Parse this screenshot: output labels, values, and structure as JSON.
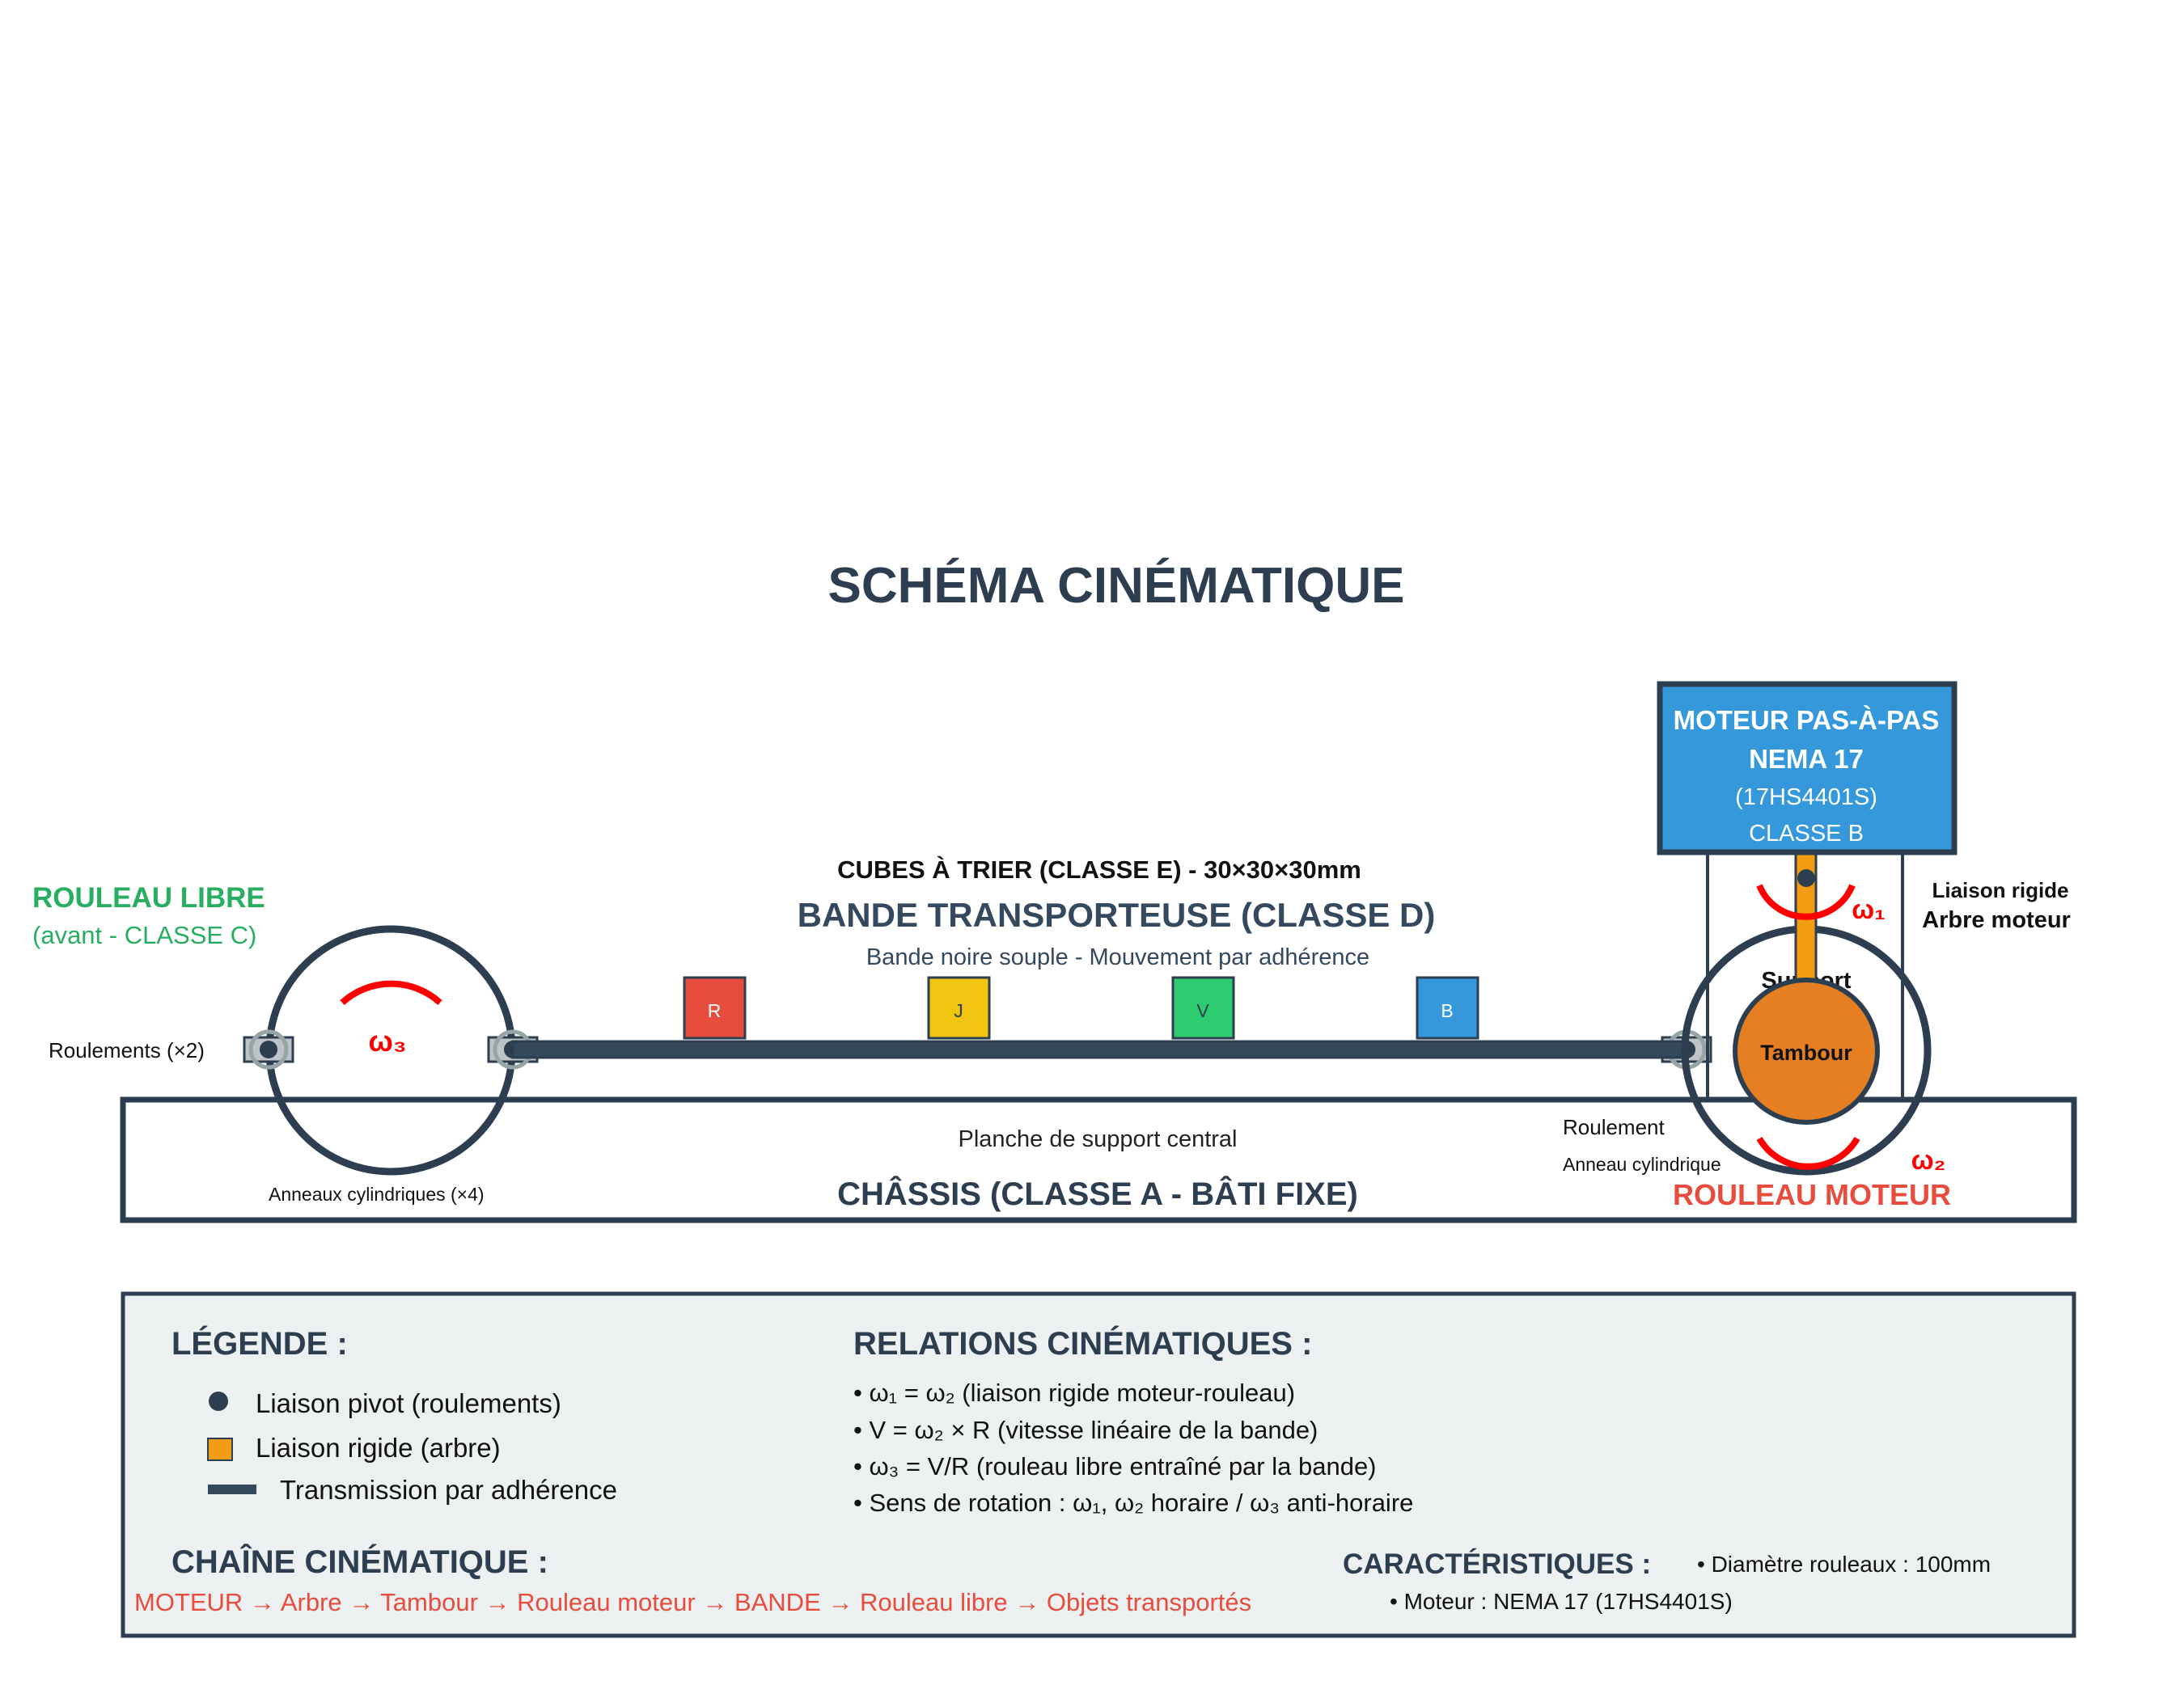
{
  "title": "SCHÉMA CINÉMATIQUE",
  "colors": {
    "dark": "#2c3e50",
    "belt": "#34495e",
    "green": "#27ae60",
    "red": "#e74c3c",
    "arrow_red": "#ff0000",
    "orange": "#e67e22",
    "shaft_orange": "#f39c12",
    "blue": "#3498db",
    "yellow": "#f1c40f",
    "cube_green": "#2ecc71",
    "legend_bg": "#ecf0f1"
  },
  "free_roller": {
    "title": "ROULEAU LIBRE",
    "subtitle": "(avant - CLASSE C)",
    "bearings_label": "Roulements (×2)",
    "rings_label": "Anneaux cylindriques (×4)",
    "omega": "ω₃"
  },
  "belt": {
    "cubes_label": "CUBES À TRIER (CLASSE E) - 30×30×30mm",
    "title": "BANDE TRANSPORTEUSE (CLASSE D)",
    "subtitle": "Bande noire souple - Mouvement par adhérence",
    "cubes": [
      "R",
      "J",
      "V",
      "B"
    ]
  },
  "motor": {
    "line1": "MOTEUR PAS-À-PAS",
    "line2": "NEMA 17",
    "line3": "(17HS4401S)",
    "line4": "CLASSE B",
    "rigid_line1": "Liaison rigide",
    "rigid_line2": "Arbre moteur",
    "omega1": "ω₁",
    "support": "Support",
    "drum": "Tambour"
  },
  "drive_roller": {
    "bearing_label": "Roulement",
    "ring_label": "Anneau cylindrique",
    "omega2": "ω₂",
    "title": "ROULEAU MOTEUR"
  },
  "chassis": {
    "board_label": "Planche de support central",
    "title": "CHÂSSIS (CLASSE A - BÂTI FIXE)"
  },
  "legend": {
    "title": "LÉGENDE :",
    "items": [
      "Liaison pivot (roulements)",
      "Liaison rigide (arbre)",
      "Transmission par adhérence"
    ],
    "relations_title": "RELATIONS CINÉMATIQUES :",
    "relations": [
      "• ω₁ = ω₂ (liaison rigide moteur-rouleau)",
      "• V = ω₂ × R (vitesse linéaire de la bande)",
      "• ω₃ = V/R (rouleau libre entraîné par la bande)",
      "• Sens de rotation : ω₁, ω₂ horaire / ω₃ anti-horaire"
    ],
    "chain_title": "CHAÎNE CINÉMATIQUE :",
    "chain": "MOTEUR → Arbre → Tambour → Rouleau moteur → BANDE → Rouleau libre → Objets transportés",
    "specs_title": "CARACTÉRISTIQUES :",
    "specs": [
      "• Diamètre rouleaux : 100mm",
      "• Moteur : NEMA 17 (17HS4401S)"
    ]
  }
}
